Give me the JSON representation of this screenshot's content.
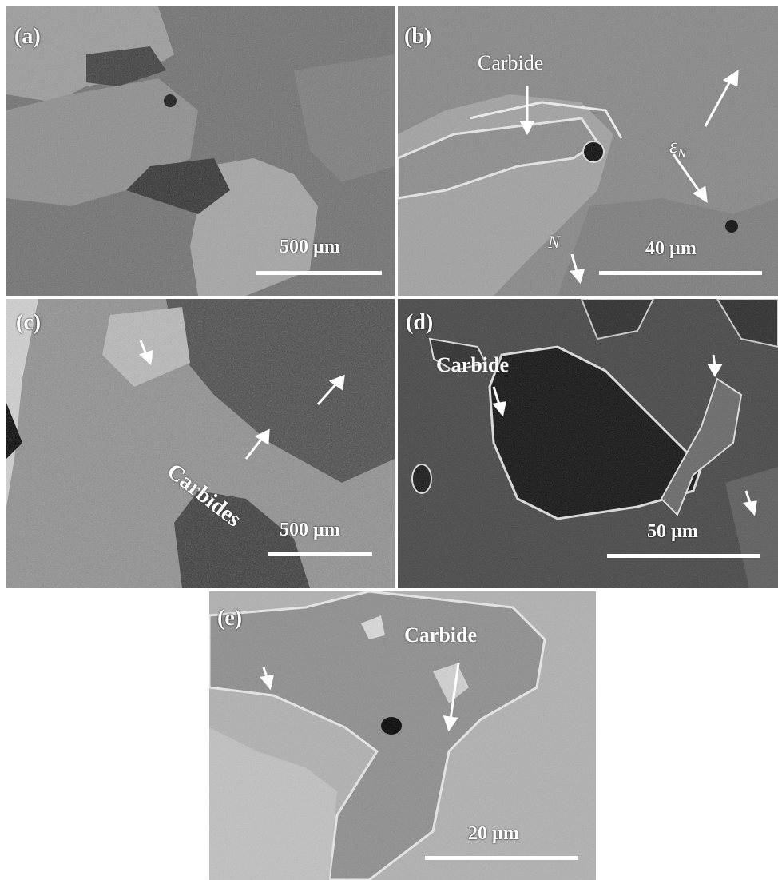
{
  "panels": {
    "a": {
      "label": "(a)",
      "scale": "500 µm"
    },
    "b": {
      "label": "(b)",
      "scale": "40 µm",
      "annotations": {
        "carbide": "Carbide",
        "epsilon": "ε",
        "epsilon_sub": "N",
        "n_label": "N"
      }
    },
    "c": {
      "label": "(c)",
      "scale": "500 µm",
      "annotations": {
        "carbides": "Carbides"
      }
    },
    "d": {
      "label": "(d)",
      "scale": "50 µm",
      "annotations": {
        "carbide": "Carbide"
      }
    },
    "e": {
      "label": "(e)",
      "scale": "20 µm",
      "annotations": {
        "carbide": "Carbide"
      }
    }
  },
  "colors": {
    "text": "#ffffff",
    "border": "#ffffff"
  }
}
